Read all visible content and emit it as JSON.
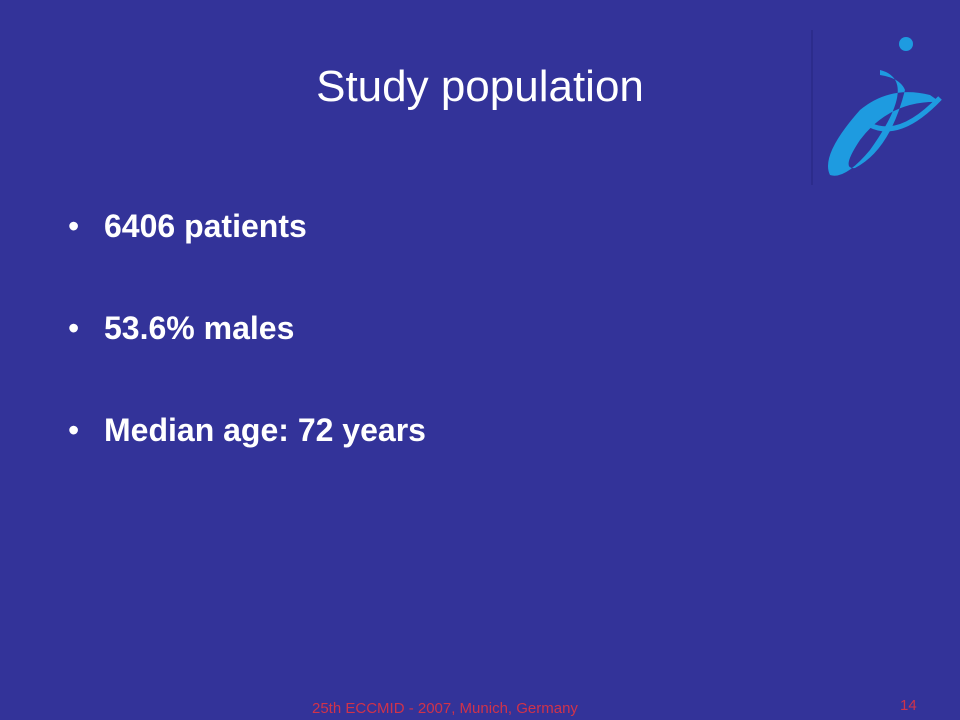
{
  "slide": {
    "title": "Study population",
    "bullets": [
      "6406 patients",
      "53.6% males",
      "Median age: 72 years"
    ],
    "footer": "25th ECCMID - 2007, Munich, Germany",
    "page_number": "14"
  }
}
